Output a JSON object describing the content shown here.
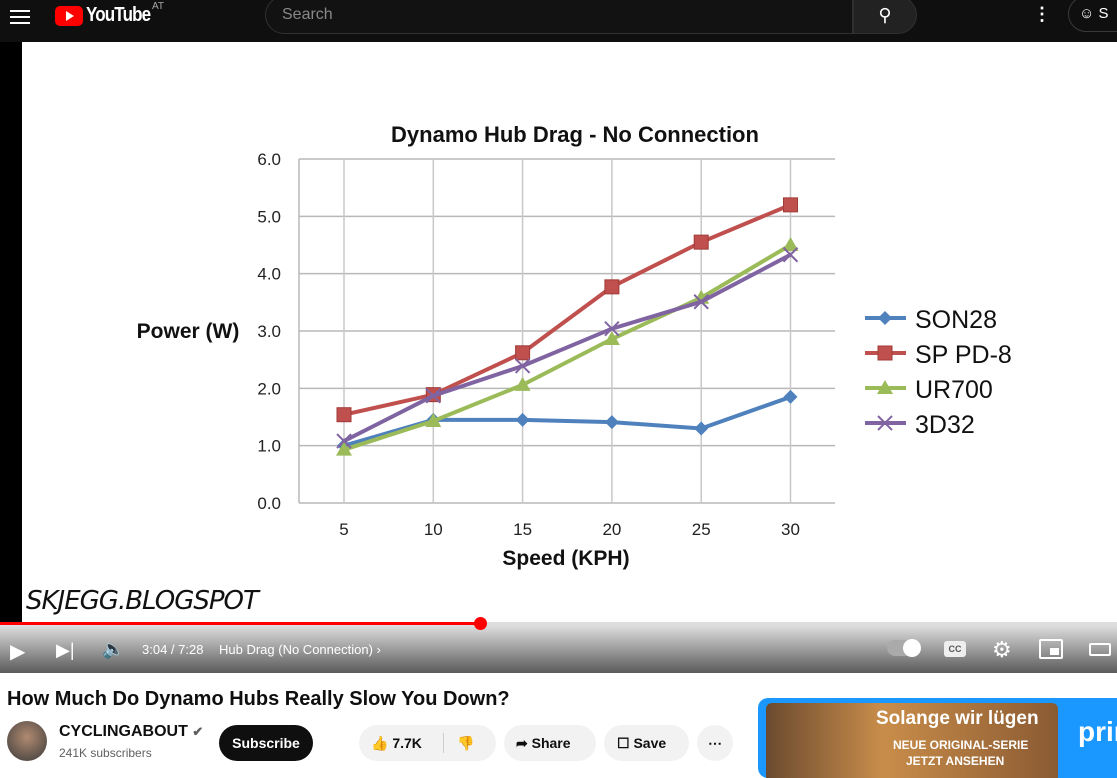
{
  "header": {
    "logo_text": "YouTube",
    "country_code": "AT",
    "search_placeholder": "Search",
    "sign_in_label": "S"
  },
  "player": {
    "time": "3:04 / 7:28",
    "chapter": "Hub Drag (No Connection)",
    "watermark": "SKJEGG.BLOGSPOT",
    "progress_percent": 43,
    "buffer_percent": 49,
    "autoplay": "on"
  },
  "video": {
    "title": "How Much Do Dynamo Hubs Really Slow You Down?",
    "channel": "CYCLINGABOUT",
    "subscribers": "241K subscribers",
    "subscribe_label": "Subscribe",
    "likes": "7.7K",
    "share_label": "Share",
    "save_label": "Save"
  },
  "ad": {
    "title": "Solange wir lügen",
    "line2": "NEUE ORIGINAL-SERIE",
    "line3": "JETZT ANSEHEN",
    "brand": "prime"
  },
  "chart_data": {
    "type": "line",
    "title": "Dynamo Hub Drag - No Connection",
    "xlabel": "Speed (KPH)",
    "ylabel": "Power (W)",
    "categories": [
      "5",
      "10",
      "15",
      "20",
      "25",
      "30"
    ],
    "ylim": [
      0,
      6
    ],
    "yticks": [
      "0.0",
      "1.0",
      "2.0",
      "3.0",
      "4.0",
      "5.0",
      "6.0"
    ],
    "grid": true,
    "legend": "right",
    "series": [
      {
        "name": "SON28",
        "color": "#4f81bd",
        "marker": "diamond",
        "values": [
          1.0,
          1.45,
          1.45,
          1.41,
          1.3,
          1.85
        ]
      },
      {
        "name": "SP PD-8",
        "color": "#c0504d",
        "marker": "square",
        "values": [
          1.54,
          1.89,
          2.62,
          3.77,
          4.55,
          5.2
        ]
      },
      {
        "name": "UR700",
        "color": "#9bbb59",
        "marker": "triangle",
        "values": [
          0.93,
          1.43,
          2.06,
          2.86,
          3.58,
          4.5
        ]
      },
      {
        "name": "3D32",
        "color": "#8064a2",
        "marker": "x",
        "values": [
          1.08,
          1.87,
          2.39,
          3.04,
          3.51,
          4.33
        ]
      }
    ]
  }
}
